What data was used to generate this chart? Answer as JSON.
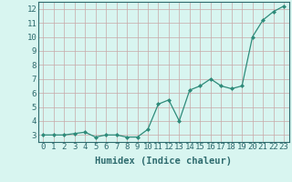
{
  "x": [
    0,
    1,
    2,
    3,
    4,
    5,
    6,
    7,
    8,
    9,
    10,
    11,
    12,
    13,
    14,
    15,
    16,
    17,
    18,
    19,
    20,
    21,
    22,
    23
  ],
  "y": [
    3.0,
    3.0,
    3.0,
    3.1,
    3.2,
    2.85,
    3.0,
    3.0,
    2.85,
    2.85,
    3.4,
    5.2,
    5.5,
    4.0,
    6.2,
    6.5,
    7.0,
    6.5,
    6.3,
    6.5,
    10.0,
    11.2,
    11.8,
    12.2
  ],
  "line_color": "#2e8b7a",
  "marker_color": "#2e8b7a",
  "bg_color": "#d8f5f0",
  "grid_color": "#c8a8a8",
  "xlabel": "Humidex (Indice chaleur)",
  "xlim": [
    -0.5,
    23.5
  ],
  "ylim": [
    2.5,
    12.5
  ],
  "yticks": [
    3,
    4,
    5,
    6,
    7,
    8,
    9,
    10,
    11,
    12
  ],
  "xticks": [
    0,
    1,
    2,
    3,
    4,
    5,
    6,
    7,
    8,
    9,
    10,
    11,
    12,
    13,
    14,
    15,
    16,
    17,
    18,
    19,
    20,
    21,
    22,
    23
  ],
  "font_color": "#2e6b6e",
  "tick_font_size": 6.5,
  "xlabel_font_size": 7.5
}
